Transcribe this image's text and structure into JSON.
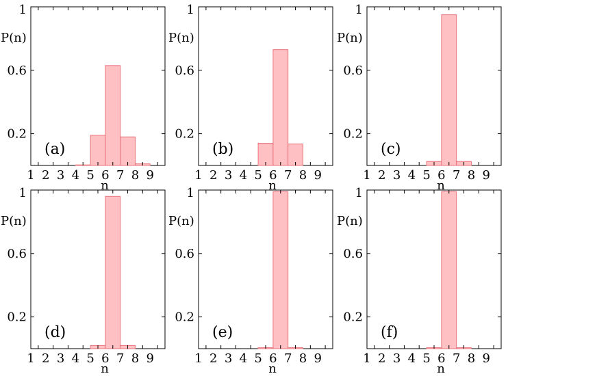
{
  "chart_data": [
    {
      "type": "bar",
      "label": "(a)",
      "xlabel": "n",
      "ylabel": "P(n)",
      "categories": [
        "1",
        "2",
        "3",
        "4",
        "5",
        "6",
        "7",
        "8",
        "9"
      ],
      "values": [
        0,
        0,
        0,
        0.001,
        0.19,
        0.63,
        0.18,
        0.01,
        0
      ],
      "ylim": [
        0,
        1
      ],
      "yticks": [
        "0.2",
        "0.6",
        "1"
      ]
    },
    {
      "type": "bar",
      "label": "(b)",
      "xlabel": "n",
      "ylabel": "P(n)",
      "categories": [
        "1",
        "2",
        "3",
        "4",
        "5",
        "6",
        "7",
        "8",
        "9"
      ],
      "values": [
        0,
        0,
        0,
        0,
        0.14,
        0.73,
        0.135,
        0,
        0
      ],
      "ylim": [
        0,
        1
      ],
      "yticks": [
        "0.2",
        "0.6",
        "1"
      ]
    },
    {
      "type": "bar",
      "label": "(c)",
      "xlabel": "n",
      "ylabel": "P(n)",
      "categories": [
        "1",
        "2",
        "3",
        "4",
        "5",
        "6",
        "7",
        "8",
        "9"
      ],
      "values": [
        0,
        0,
        0,
        0,
        0.025,
        0.95,
        0.025,
        0,
        0
      ],
      "ylim": [
        0,
        1
      ],
      "yticks": [
        "0.2",
        "0.6",
        "1"
      ]
    },
    {
      "type": "bar",
      "label": "(d)",
      "xlabel": "n",
      "ylabel": "P(n)",
      "categories": [
        "1",
        "2",
        "3",
        "4",
        "5",
        "6",
        "7",
        "8",
        "9"
      ],
      "values": [
        0,
        0,
        0,
        0,
        0.02,
        0.96,
        0.02,
        0,
        0
      ],
      "ylim": [
        0,
        1
      ],
      "yticks": [
        "0.2",
        "0.6",
        "1"
      ]
    },
    {
      "type": "bar",
      "label": "(e)",
      "xlabel": "n",
      "ylabel": "P(n)",
      "categories": [
        "1",
        "2",
        "3",
        "4",
        "5",
        "6",
        "7",
        "8",
        "9"
      ],
      "values": [
        0,
        0,
        0,
        0,
        0.006,
        0.99,
        0.006,
        0,
        0
      ],
      "ylim": [
        0,
        1
      ],
      "yticks": [
        "0.2",
        "0.6",
        "1"
      ]
    },
    {
      "type": "bar",
      "label": "(f)",
      "xlabel": "n",
      "ylabel": "P(n)",
      "categories": [
        "1",
        "2",
        "3",
        "4",
        "5",
        "6",
        "7",
        "8",
        "9"
      ],
      "values": [
        0,
        0,
        0,
        0,
        0.006,
        0.99,
        0.006,
        0,
        0
      ],
      "ylim": [
        0,
        1
      ],
      "yticks": [
        "0.2",
        "0.6",
        "1"
      ]
    }
  ],
  "colors": {
    "bar_fill": "#ffc0c4",
    "bar_stroke": "#e8737b",
    "axis": "#000000"
  }
}
